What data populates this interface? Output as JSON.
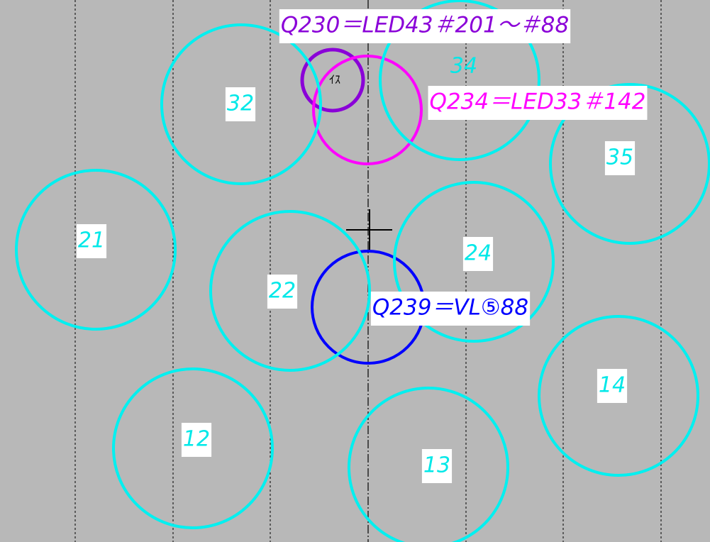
{
  "circles": [
    {
      "label": "32"
    },
    {
      "label": "34"
    },
    {
      "label": "35"
    },
    {
      "label": "21"
    },
    {
      "label": "22"
    },
    {
      "label": "24"
    },
    {
      "label": "12"
    },
    {
      "label": "13"
    },
    {
      "label": "14"
    }
  ],
  "callouts": [
    {
      "text": "Q230＝LED43＃201～＃88"
    },
    {
      "text": "Q234＝LED33＃142"
    },
    {
      "text": "Q239＝VL⑤88"
    }
  ],
  "marker": "ｲｽ"
}
